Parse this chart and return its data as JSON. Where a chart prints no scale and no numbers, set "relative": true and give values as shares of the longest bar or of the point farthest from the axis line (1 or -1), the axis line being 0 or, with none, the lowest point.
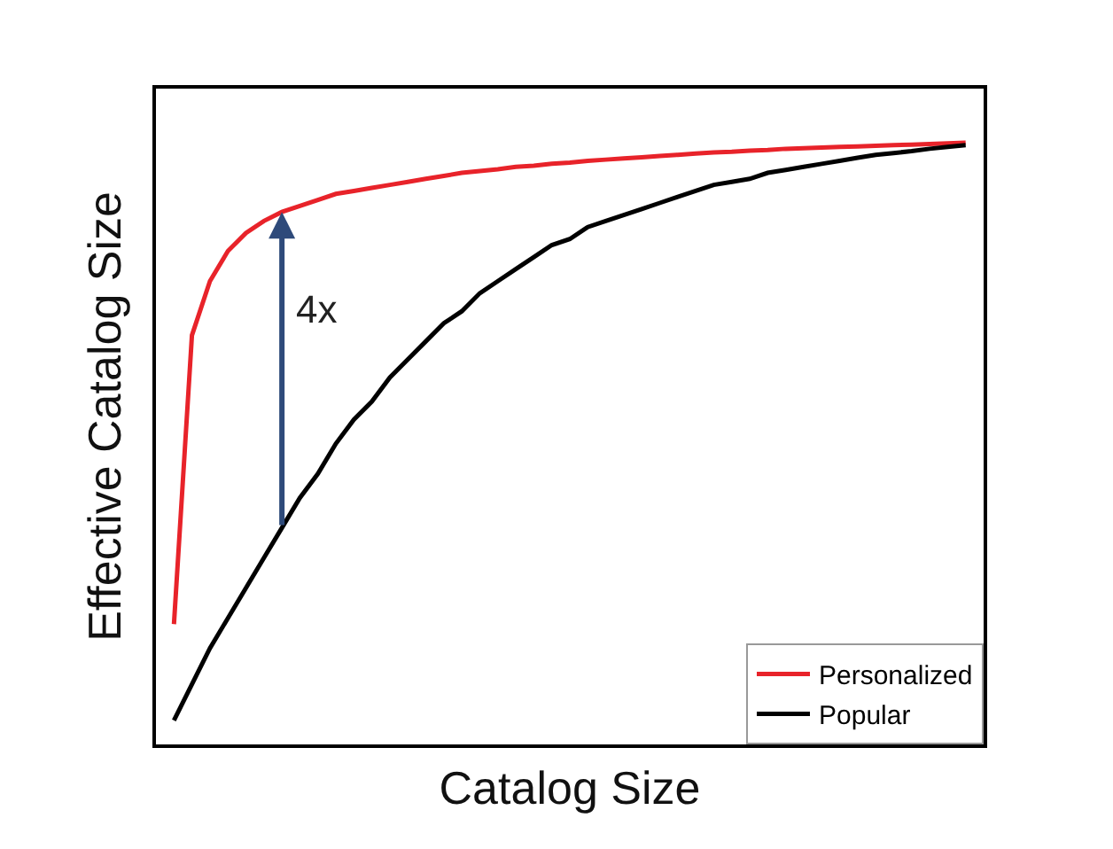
{
  "chart_data": {
    "type": "line",
    "relative": true,
    "xlabel": "Catalog Size",
    "ylabel": "Effective Catalog Size",
    "categories": [
      null,
      null,
      null,
      null,
      null,
      null,
      null,
      null,
      null,
      null,
      null,
      null,
      null,
      null,
      null,
      null,
      null,
      null,
      null,
      null,
      null,
      null,
      null,
      null,
      null,
      null,
      null,
      null,
      null,
      null,
      null,
      null,
      null,
      null,
      null,
      null,
      null,
      null,
      null,
      null,
      null,
      null,
      null,
      null,
      null
    ],
    "series": [
      {
        "name": "Personalized",
        "color": "#e8232a",
        "values": [
          0.2,
          0.68,
          0.77,
          0.82,
          0.85,
          0.87,
          0.885,
          0.895,
          0.905,
          0.915,
          0.92,
          0.925,
          0.93,
          0.935,
          0.94,
          0.945,
          0.95,
          0.953,
          0.956,
          0.96,
          0.962,
          0.965,
          0.967,
          0.97,
          0.972,
          0.974,
          0.976,
          0.978,
          0.98,
          0.982,
          0.984,
          0.985,
          0.987,
          0.988,
          0.99,
          0.991,
          0.992,
          0.993,
          0.994,
          0.995,
          0.996,
          0.997,
          0.998,
          0.999,
          1
        ]
      },
      {
        "name": "Popular",
        "color": "#000000",
        "values": [
          0.04,
          0.1,
          0.16,
          0.21,
          0.26,
          0.31,
          0.36,
          0.41,
          0.45,
          0.5,
          0.54,
          0.57,
          0.61,
          0.64,
          0.67,
          0.7,
          0.72,
          0.75,
          0.77,
          0.79,
          0.81,
          0.83,
          0.84,
          0.86,
          0.87,
          0.88,
          0.89,
          0.9,
          0.91,
          0.92,
          0.93,
          0.935,
          0.94,
          0.95,
          0.955,
          0.96,
          0.965,
          0.97,
          0.975,
          0.98,
          0.983,
          0.986,
          0.99,
          0.993,
          0.996
        ]
      }
    ],
    "annotations": [
      "4x"
    ],
    "legend": "bottom right",
    "grid": false,
    "marker": "none",
    "line_style": "solid"
  }
}
